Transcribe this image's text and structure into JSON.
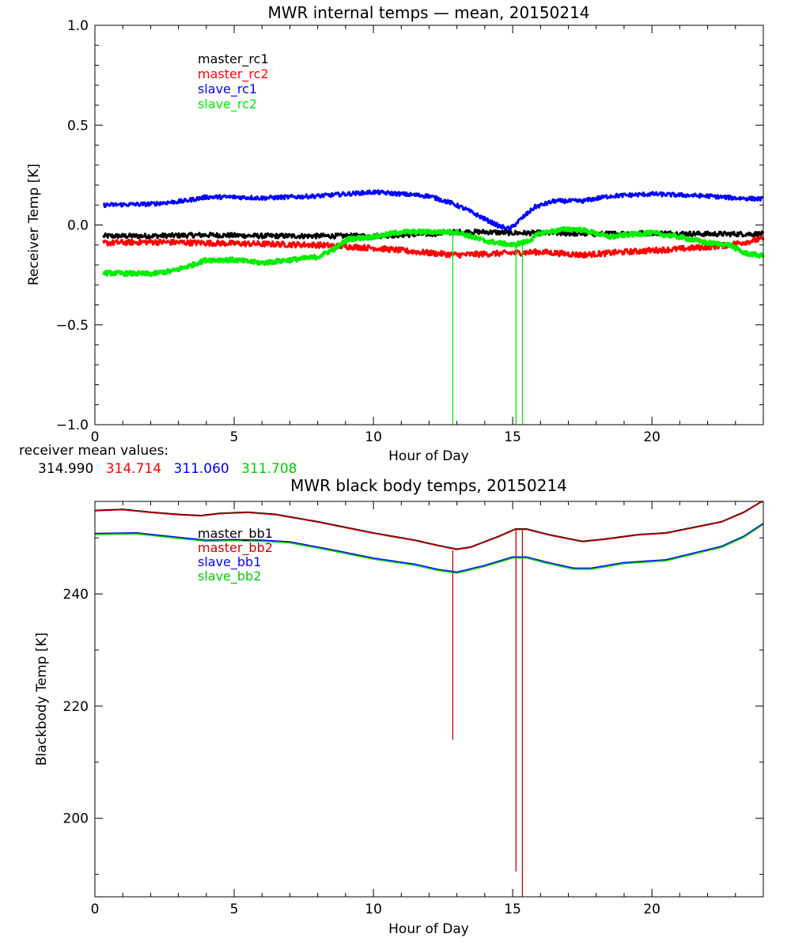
{
  "chart_data": [
    {
      "type": "line",
      "title": "MWR internal temps — mean, 20150214",
      "xlabel": "Hour of Day",
      "ylabel": "Receiver Temp [K]",
      "xlim": [
        0,
        24
      ],
      "ylim": [
        -1.0,
        1.0
      ],
      "x_ticks": [
        0,
        5,
        10,
        15,
        20
      ],
      "y_ticks": [
        -1.0,
        -0.5,
        0.0,
        0.5,
        1.0
      ],
      "y_tick_labels": [
        "−1.0",
        "−0.5",
        "0.0",
        "0.5",
        "1.0"
      ],
      "grid": false,
      "legend_position": "top-left",
      "series": [
        {
          "name": "master_rc1",
          "color": "#000000",
          "noise": 0.012,
          "x": [
            0.3,
            2,
            4,
            6,
            8,
            10,
            12,
            13,
            14,
            15,
            16,
            18,
            20,
            22,
            24
          ],
          "values": [
            -0.055,
            -0.055,
            -0.05,
            -0.055,
            -0.055,
            -0.055,
            -0.045,
            -0.035,
            -0.035,
            -0.04,
            -0.04,
            -0.045,
            -0.04,
            -0.045,
            -0.045
          ],
          "spikes": []
        },
        {
          "name": "master_rc2",
          "color": "#ff0000",
          "noise": 0.014,
          "x": [
            0.3,
            2,
            4,
            6,
            8,
            10,
            12,
            13,
            14,
            15,
            16,
            17.5,
            19,
            21,
            22.5,
            24
          ],
          "values": [
            -0.09,
            -0.085,
            -0.09,
            -0.095,
            -0.1,
            -0.115,
            -0.14,
            -0.15,
            -0.145,
            -0.14,
            -0.135,
            -0.15,
            -0.135,
            -0.12,
            -0.105,
            -0.07
          ],
          "spikes": []
        },
        {
          "name": "slave_rc1",
          "color": "#0000ff",
          "noise": 0.01,
          "x": [
            0.3,
            2,
            3.2,
            4,
            5,
            6,
            8,
            10,
            11,
            12,
            12.8,
            13.3,
            14.0,
            14.5,
            14.9,
            15.3,
            15.8,
            16.5,
            17.5,
            18.5,
            20,
            21,
            22,
            23,
            24
          ],
          "values": [
            0.1,
            0.105,
            0.12,
            0.14,
            0.14,
            0.135,
            0.145,
            0.165,
            0.155,
            0.145,
            0.11,
            0.08,
            0.03,
            -0.005,
            -0.02,
            0.03,
            0.09,
            0.12,
            0.12,
            0.145,
            0.155,
            0.15,
            0.145,
            0.135,
            0.13
          ],
          "spikes": [
            [
              12.85,
              0.1,
              0.11
            ]
          ]
        },
        {
          "name": "slave_rc2",
          "color": "#00ee00",
          "noise": 0.01,
          "x": [
            0.3,
            2,
            2.8,
            3.5,
            4,
            5,
            6,
            7,
            8,
            8.6,
            9.1,
            10,
            11,
            12,
            13,
            14,
            15,
            15.5,
            16,
            17,
            17.5,
            18.5,
            19,
            20,
            21,
            22,
            22.8,
            23.3,
            24
          ],
          "values": [
            -0.24,
            -0.245,
            -0.23,
            -0.2,
            -0.175,
            -0.175,
            -0.19,
            -0.175,
            -0.16,
            -0.12,
            -0.07,
            -0.06,
            -0.035,
            -0.035,
            -0.035,
            -0.08,
            -0.1,
            -0.085,
            -0.04,
            -0.02,
            -0.025,
            -0.06,
            -0.05,
            -0.04,
            -0.06,
            -0.09,
            -0.1,
            -0.14,
            -0.155
          ],
          "spikes": [
            [
              12.85,
              -0.04,
              -1.02
            ],
            [
              15.12,
              -0.1,
              -1.02
            ],
            [
              15.35,
              -0.09,
              -1.02
            ]
          ]
        }
      ]
    },
    {
      "type": "line",
      "title": "MWR black body temps, 20150214",
      "xlabel": "Hour of Day",
      "ylabel": "Blackbody Temp [K]",
      "xlim": [
        0,
        24
      ],
      "ylim": [
        186,
        256.5
      ],
      "x_ticks": [
        0,
        5,
        10,
        15,
        20
      ],
      "y_ticks": [
        200,
        220,
        240
      ],
      "grid": false,
      "legend_position": "top-left",
      "series": [
        {
          "name": "master_bb1",
          "color": "#000000",
          "noise": 0,
          "x": [
            0,
            1,
            2,
            3,
            3.8,
            4.5,
            5.5,
            6.5,
            8,
            10,
            11.5,
            12.3,
            13,
            13.5,
            14.5,
            15.1,
            15.5,
            16.3,
            17.5,
            18.3,
            19.5,
            20.5,
            21.5,
            22.5,
            23.3,
            24
          ],
          "values": [
            254.9,
            255.1,
            254.6,
            254.2,
            254.0,
            254.4,
            254.6,
            254.2,
            252.9,
            250.9,
            249.6,
            248.7,
            248.0,
            248.4,
            250.3,
            251.6,
            251.6,
            250.6,
            249.4,
            249.8,
            250.6,
            250.9,
            251.9,
            252.9,
            254.6,
            256.7
          ],
          "spikes": []
        },
        {
          "name": "master_bb2",
          "color": "#cc0000",
          "noise": 0,
          "x": [
            0,
            1,
            2,
            3,
            3.8,
            4.5,
            5.5,
            6.5,
            8,
            10,
            11.5,
            12.3,
            13,
            13.5,
            14.5,
            15.1,
            15.5,
            16.3,
            17.5,
            18.3,
            19.5,
            20.5,
            21.5,
            22.5,
            23.3,
            24
          ],
          "values": [
            254.8,
            255.0,
            254.5,
            254.1,
            253.9,
            254.3,
            254.5,
            254.1,
            252.8,
            250.8,
            249.5,
            248.6,
            247.9,
            248.3,
            250.2,
            251.5,
            251.5,
            250.5,
            249.3,
            249.7,
            250.5,
            250.8,
            251.8,
            252.8,
            254.5,
            256.6
          ],
          "spikes": [
            [
              12.85,
              247.8,
              214.0
            ],
            [
              15.12,
              251.5,
              190.5
            ],
            [
              15.35,
              251.5,
              186.0
            ]
          ]
        },
        {
          "name": "slave_bb1",
          "color": "#0000ff",
          "noise": 0,
          "x": [
            0,
            1.5,
            3,
            4,
            5,
            6,
            7,
            8.5,
            10,
            11.5,
            12.3,
            13,
            14,
            15,
            15.5,
            16.2,
            17.2,
            17.8,
            19,
            20.5,
            21.5,
            22.5,
            23.3,
            24
          ],
          "values": [
            250.8,
            250.9,
            250.1,
            249.6,
            249.7,
            249.6,
            249.3,
            247.9,
            246.4,
            245.3,
            244.4,
            243.9,
            245.1,
            246.6,
            246.6,
            245.7,
            244.6,
            244.6,
            245.6,
            246.1,
            247.3,
            248.5,
            250.3,
            252.6
          ],
          "spikes": []
        },
        {
          "name": "slave_bb2",
          "color": "#00cc00",
          "noise": 0,
          "x": [
            0,
            1.5,
            3,
            4,
            5,
            6,
            7,
            8.5,
            10,
            11.5,
            12.3,
            13,
            14,
            15,
            15.5,
            16.2,
            17.2,
            17.8,
            19,
            20.5,
            21.5,
            22.5,
            23.3,
            24
          ],
          "values": [
            250.6,
            250.7,
            249.9,
            249.4,
            249.5,
            249.4,
            249.1,
            247.7,
            246.2,
            245.1,
            244.2,
            243.7,
            244.9,
            246.4,
            246.4,
            245.5,
            244.4,
            244.4,
            245.4,
            245.9,
            247.1,
            248.3,
            250.1,
            252.4
          ],
          "spikes": []
        }
      ]
    }
  ],
  "receiver_means": {
    "label": "receiver mean values:",
    "values": [
      {
        "text": "314.990",
        "color": "#000000"
      },
      {
        "text": "314.714",
        "color": "#ff0000"
      },
      {
        "text": "311.060",
        "color": "#0000ff"
      },
      {
        "text": "311.708",
        "color": "#00cc00"
      }
    ]
  }
}
